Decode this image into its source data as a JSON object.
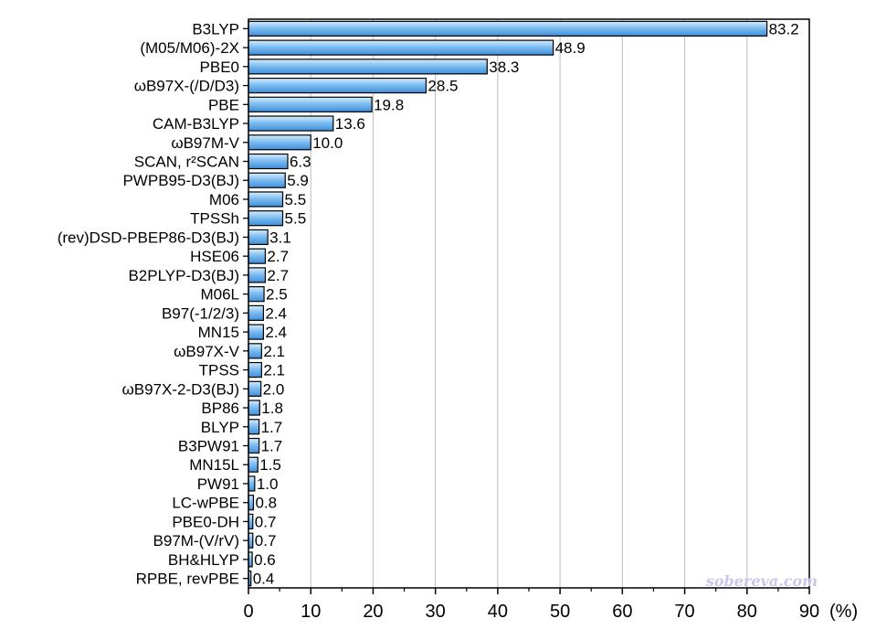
{
  "chart_data": {
    "type": "bar",
    "orientation": "horizontal",
    "categories": [
      "B3LYP",
      "(M05/M06)-2X",
      "PBE0",
      "ωB97X-(/D/D3)",
      "PBE",
      "CAM-B3LYP",
      "ωB97M-V",
      "SCAN, r²SCAN",
      "PWPB95-D3(BJ)",
      "M06",
      "TPSSh",
      "(rev)DSD-PBEP86-D3(BJ)",
      "HSE06",
      "B2PLYP-D3(BJ)",
      "M06L",
      "B97(-1/2/3)",
      "MN15",
      "ωB97X-V",
      "TPSS",
      "ωB97X-2-D3(BJ)",
      "BP86",
      "BLYP",
      "B3PW91",
      "MN15L",
      "PW91",
      "LC-wPBE",
      "PBE0-DH",
      "B97M-(V/rV)",
      "BH&HLYP",
      "RPBE, revPBE"
    ],
    "values": [
      83.2,
      48.9,
      38.3,
      28.5,
      19.8,
      13.6,
      10.0,
      6.3,
      5.9,
      5.5,
      5.5,
      3.1,
      2.7,
      2.7,
      2.5,
      2.4,
      2.4,
      2.1,
      2.1,
      2.0,
      1.8,
      1.7,
      1.7,
      1.5,
      1.0,
      0.8,
      0.7,
      0.7,
      0.6,
      0.4
    ],
    "value_labels": [
      "83.2",
      "48.9",
      "38.3",
      "28.5",
      "19.8",
      "13.6",
      "10.0",
      "6.3",
      "5.9",
      "5.5",
      "5.5",
      "3.1",
      "2.7",
      "2.7",
      "2.5",
      "2.4",
      "2.4",
      "2.1",
      "2.1",
      "2.0",
      "1.8",
      "1.7",
      "1.7",
      "1.5",
      "1.0",
      "0.8",
      "0.7",
      "0.7",
      "0.6",
      "0.4"
    ],
    "xlim": [
      0,
      90
    ],
    "xticks": [
      0,
      10,
      20,
      30,
      40,
      50,
      60,
      70,
      80,
      90
    ],
    "xtick_labels": [
      "0",
      "10",
      "20",
      "30",
      "40",
      "50",
      "60",
      "70",
      "80",
      "90"
    ],
    "x_unit_label": "(%)",
    "grid": "vertical",
    "legend": "none",
    "colors": {
      "bar_light": "#d8ecfc",
      "bar_mid": "#7fbef2",
      "bar_dark": "#3f8fda",
      "bar_edge": "#000000",
      "grid": "#bdbdbd"
    }
  },
  "watermark": "sobereva.com"
}
